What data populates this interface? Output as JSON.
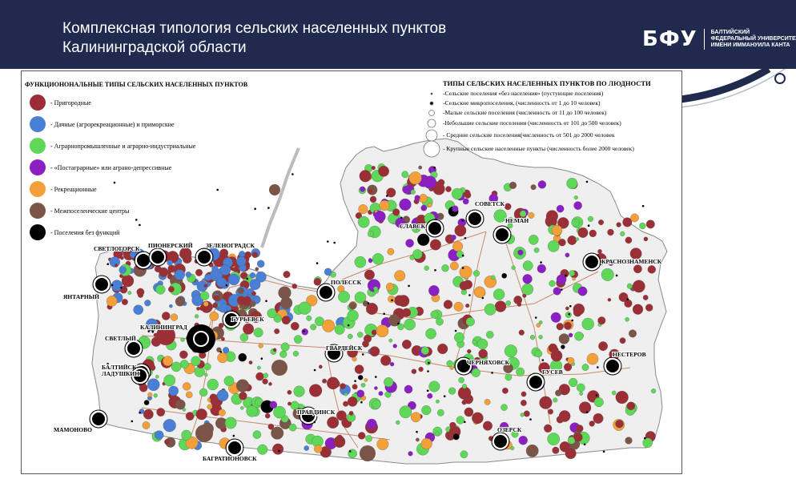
{
  "header": {
    "title_line1": "Комплексная типология сельских населенных пунктов",
    "title_line2": "Калининградской области",
    "logo_mark": "БФУ",
    "logo_line1": "БАЛТИЙСКИЙ",
    "logo_line2": "ФЕДЕРАЛЬНЫЙ УНИВЕРСИТЕТ",
    "logo_line3": "ИМЕНИ ИММАНУИЛА КАНТА"
  },
  "legend_functional": {
    "title": "ФУНКЦИОНОНАЛЬНЫЕ ТИПЫ СЕЛЬСКИХ НАСЕЛЕННЫХ ПУНКТОВ",
    "items": [
      {
        "label": "- Пригородные",
        "color": "#9b2f35"
      },
      {
        "label": "- Дачные (агрорекреационные) и приморские",
        "color": "#4a7fd6"
      },
      {
        "label": "- Аграрнопромышленные и аграрно-индустриальные",
        "color": "#5fd85a"
      },
      {
        "label": "- «Постаграрные» или аграно-депрессивные",
        "color": "#8b1fc4"
      },
      {
        "label": "- Рекреационные",
        "color": "#f4a03a"
      },
      {
        "label": "- Межпоселенческие центры",
        "color": "#7a5548"
      },
      {
        "label": "- Поселения без функций",
        "color": "#000000"
      }
    ]
  },
  "legend_size": {
    "title": "ТИПЫ СЕЛЬСКИХ НАСЕЛЕННЫХ ПУНКТОВ ПО ЛЮДНОСТИ",
    "items": [
      "-Сельские поселения «без населения» (пустующие поселения)",
      "-Сельские микропоселения, (численность от 1 до 10 человек)",
      "-Малые сельские поселения (численность от 11 до 100 человек)",
      "-Небольшие сельские поселения (численность от 101 до 500 человек)",
      "- Средние сельские поселения(численность от 501 до 2000 человек",
      "- Крупные сельские населенные пункты (численность более 2000 человек)"
    ]
  },
  "cities": [
    {
      "name": "СОВЕТСК"
    },
    {
      "name": "НЕМАН"
    },
    {
      "name": "СЛАВСК"
    },
    {
      "name": "КРАСНОЗНАМЕНСК"
    },
    {
      "name": "СВЕТЛОГОРСК"
    },
    {
      "name": "ПИОНЕРСКИЙ"
    },
    {
      "name": "ЗЕЛЕНОГРАДСК"
    },
    {
      "name": "ПОЛЕССК"
    },
    {
      "name": "ЯНТАРНЫЙ"
    },
    {
      "name": "КАЛИНИНГРАД"
    },
    {
      "name": "ГУРЬЕВСК"
    },
    {
      "name": "СВЕТЛЫЙ"
    },
    {
      "name": "ГВАРДЕЙСК"
    },
    {
      "name": "ЧЕРНЯХОВСК"
    },
    {
      "name": "ГУСЕВ"
    },
    {
      "name": "НЕСТЕРОВ"
    },
    {
      "name": "БАЛТИЙСК"
    },
    {
      "name": "ЛАДУШКИН"
    },
    {
      "name": "МАМОНОВО"
    },
    {
      "name": "ПРАВДИНСК"
    },
    {
      "name": "ОЗЕРСК"
    },
    {
      "name": "БАГРАТИОНОВСК"
    }
  ]
}
